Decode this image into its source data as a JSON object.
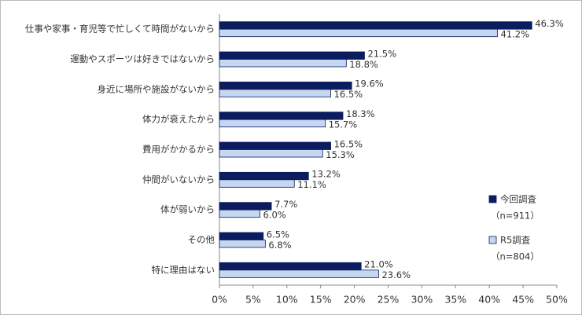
{
  "chart_data": {
    "type": "hbar",
    "categories": [
      "仕事や家事・育児等で忙しくて時間がないから",
      "運動やスポーツは好きではないから",
      "身近に場所や施設がないから",
      "体力が衰えたから",
      "費用がかかるから",
      "仲間がいないから",
      "体が弱いから",
      "その他",
      "特に理由はない"
    ],
    "series": [
      {
        "name": "今回調査",
        "legend_note": "（n=911）",
        "color": "#0b1d5e",
        "values": [
          46.3,
          21.5,
          19.6,
          18.3,
          16.5,
          13.2,
          7.7,
          6.5,
          21.0
        ],
        "value_labels": [
          "46.3%",
          "21.5%",
          "19.6%",
          "18.3%",
          "16.5%",
          "13.2%",
          "7.7%",
          "6.5%",
          "21.0%"
        ]
      },
      {
        "name": "R5調査",
        "legend_note": "（n=804）",
        "color": "#c6d7f1",
        "values": [
          41.2,
          18.8,
          16.5,
          15.7,
          15.3,
          11.1,
          6.0,
          6.8,
          23.6
        ],
        "value_labels": [
          "41.2%",
          "18.8%",
          "16.5%",
          "15.7%",
          "15.3%",
          "11.1%",
          "6.0%",
          "6.8%",
          "23.6%"
        ]
      }
    ],
    "xlim": [
      0,
      50
    ],
    "xticks": [
      {
        "value": 0,
        "label": "0%"
      },
      {
        "value": 5,
        "label": "5%"
      },
      {
        "value": 10,
        "label": "10%"
      },
      {
        "value": 15,
        "label": "15%"
      },
      {
        "value": 20,
        "label": "20%"
      },
      {
        "value": 25,
        "label": "25%"
      },
      {
        "value": 30,
        "label": "30%"
      },
      {
        "value": 35,
        "label": "35%"
      },
      {
        "value": 40,
        "label": "40%"
      },
      {
        "value": 45,
        "label": "45%"
      },
      {
        "value": 50,
        "label": "50%"
      }
    ]
  }
}
